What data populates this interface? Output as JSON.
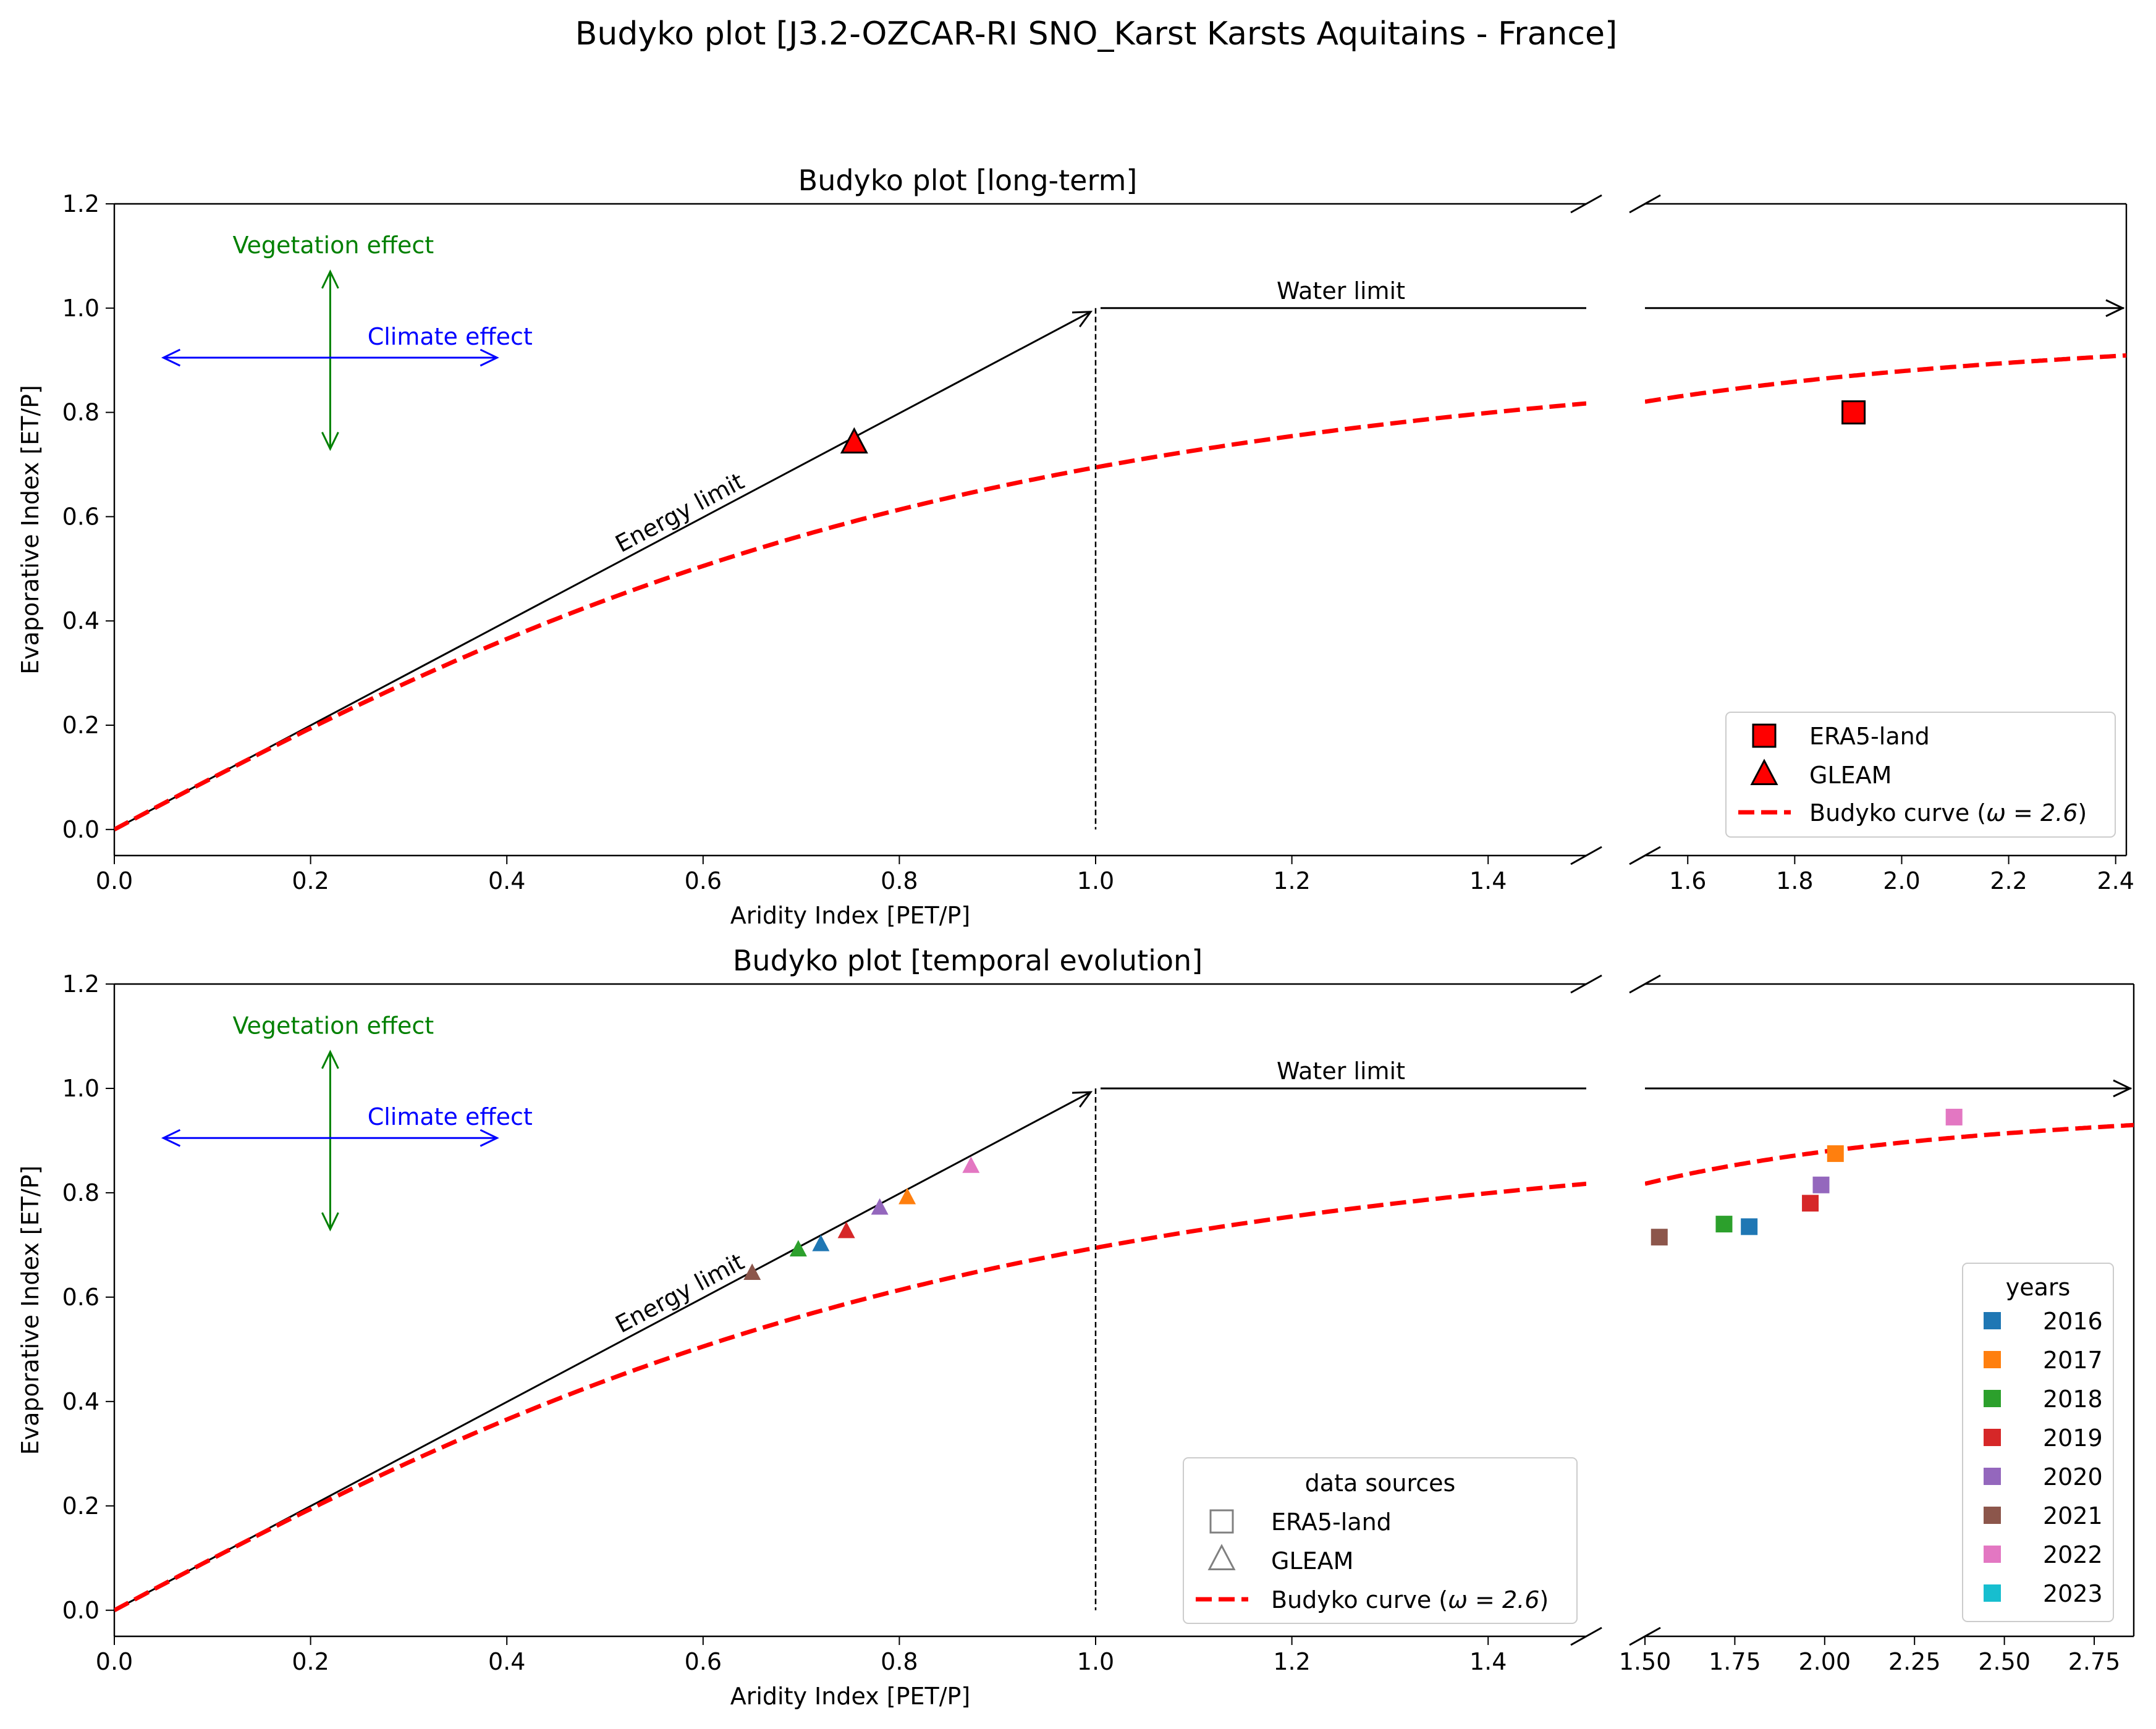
{
  "figure": {
    "suptitle": "Budyko plot [J3.2-OZCAR-RI SNO_Karst Karsts Aquitains - France]"
  },
  "colors": {
    "budyko_curve": "#ff0000",
    "vegetation_effect": "#008000",
    "climate_effect": "#0000ff",
    "limits": "#000000"
  },
  "chart_data": [
    {
      "type": "scatter",
      "title": "Budyko plot [long-term]",
      "xlabel": "Aridity Index [PET/P]",
      "ylabel": "Evaporative Index [ET/P]",
      "x_axis_broken": true,
      "x_segments": [
        {
          "xlim": [
            0.0,
            1.5
          ],
          "ticks": [
            "0.0",
            "0.2",
            "0.4",
            "0.6",
            "0.8",
            "1.0",
            "1.2",
            "1.4"
          ]
        },
        {
          "xlim": [
            1.52,
            2.42
          ],
          "ticks": [
            "1.6",
            "1.8",
            "2.0",
            "2.2",
            "2.4"
          ]
        }
      ],
      "ylim": [
        -0.05,
        1.2
      ],
      "yticks": [
        "0.0",
        "0.2",
        "0.4",
        "0.6",
        "0.8",
        "1.0",
        "1.2"
      ],
      "annotations": {
        "energy_limit": "Energy limit",
        "water_limit": "Water limit",
        "vegetation_effect": "Vegetation effect",
        "climate_effect": "Climate effect"
      },
      "budyko_omega": 2.6,
      "points": [
        {
          "source": "ERA5-land",
          "marker": "square",
          "color": "#ff0000",
          "x": 1.91,
          "y": 0.8
        },
        {
          "source": "GLEAM",
          "marker": "triangle",
          "color": "#ff0000",
          "x": 0.754,
          "y": 0.74
        }
      ],
      "legend": {
        "position": "lower-right",
        "entries": [
          "ERA5-land",
          "GLEAM",
          "Budyko curve ($\\omega = 2.6$)"
        ],
        "curve_label_prefix": "Budyko curve (",
        "curve_label_omega": "ω = 2.6",
        "curve_label_suffix": ")"
      }
    },
    {
      "type": "scatter",
      "title": "Budyko plot [temporal evolution]",
      "xlabel": "Aridity Index [PET/P]",
      "ylabel": "Evaporative Index [ET/P]",
      "x_axis_broken": true,
      "x_segments": [
        {
          "xlim": [
            0.0,
            1.5
          ],
          "ticks": [
            "0.0",
            "0.2",
            "0.4",
            "0.6",
            "0.8",
            "1.0",
            "1.2",
            "1.4"
          ]
        },
        {
          "xlim": [
            1.5,
            2.86
          ],
          "ticks": [
            "1.50",
            "1.75",
            "2.00",
            "2.25",
            "2.50",
            "2.75"
          ]
        }
      ],
      "ylim": [
        -0.05,
        1.2
      ],
      "yticks": [
        "0.0",
        "0.2",
        "0.4",
        "0.6",
        "0.8",
        "1.0",
        "1.2"
      ],
      "annotations": {
        "energy_limit": "Energy limit",
        "water_limit": "Water limit",
        "vegetation_effect": "Vegetation effect",
        "climate_effect": "Climate effect"
      },
      "budyko_omega": 2.6,
      "series": [
        {
          "name": "2016",
          "color": "#1f77b4",
          "era5": {
            "x": 1.79,
            "y": 0.735
          },
          "gleam": {
            "x": 0.72,
            "y": 0.7
          }
        },
        {
          "name": "2017",
          "color": "#ff7f0e",
          "era5": {
            "x": 2.03,
            "y": 0.875
          },
          "gleam": {
            "x": 0.808,
            "y": 0.79
          }
        },
        {
          "name": "2018",
          "color": "#2ca02c",
          "era5": {
            "x": 1.72,
            "y": 0.74
          },
          "gleam": {
            "x": 0.697,
            "y": 0.69
          }
        },
        {
          "name": "2019",
          "color": "#d62728",
          "era5": {
            "x": 1.96,
            "y": 0.78
          },
          "gleam": {
            "x": 0.746,
            "y": 0.725
          }
        },
        {
          "name": "2020",
          "color": "#9467bd",
          "era5": {
            "x": 1.99,
            "y": 0.815
          },
          "gleam": {
            "x": 0.78,
            "y": 0.77
          }
        },
        {
          "name": "2021",
          "color": "#8c564b",
          "era5": {
            "x": 1.54,
            "y": 0.715
          },
          "gleam": {
            "x": 0.65,
            "y": 0.645
          }
        },
        {
          "name": "2022",
          "color": "#e377c2",
          "era5": {
            "x": 2.36,
            "y": 0.945
          },
          "gleam": {
            "x": 0.873,
            "y": 0.85
          }
        },
        {
          "name": "2023",
          "color": "#17becf"
        }
      ],
      "legend_sources": {
        "position": "lower-center",
        "title": "data sources",
        "entries": [
          "ERA5-land",
          "GLEAM",
          "Budyko curve ($\\omega = 2.6$)"
        ],
        "curve_label_prefix": "Budyko curve (",
        "curve_label_omega": "ω = 2.6",
        "curve_label_suffix": ")"
      },
      "legend_years": {
        "position": "lower-right",
        "title": "years",
        "entries": [
          "2016",
          "2017",
          "2018",
          "2019",
          "2020",
          "2021",
          "2022",
          "2023"
        ]
      }
    }
  ]
}
